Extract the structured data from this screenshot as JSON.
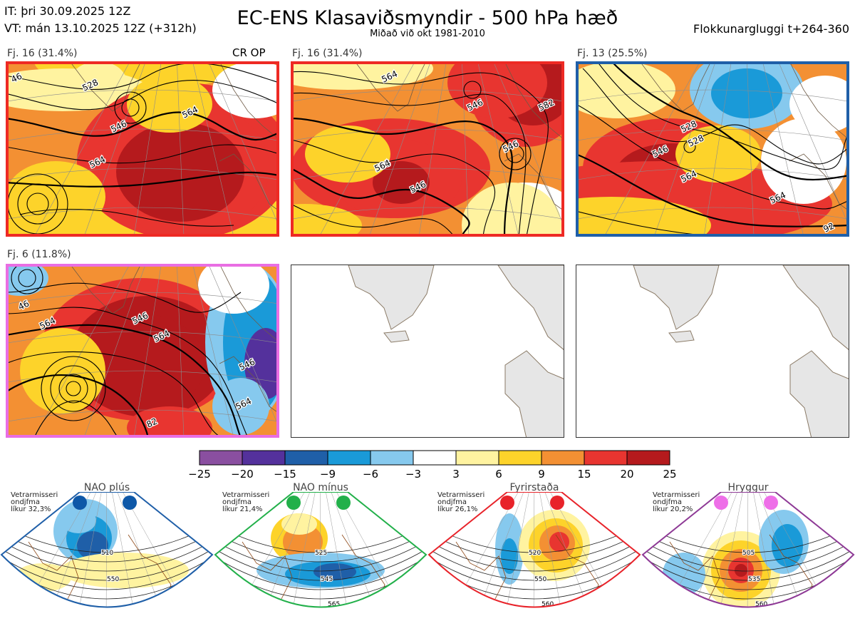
{
  "header": {
    "it_line": "IT: þri 30.09.2025 12Z",
    "vt_line": "VT: mán 13.10.2025 12Z  (+312h)",
    "title": "EC-ENS Klasaviðsmyndir - 500 hPa hæð",
    "subtitle": "Miðað við okt 1981-2010",
    "window": "Flokkunargluggi t+264-360"
  },
  "clusters": [
    {
      "label": "Fj. 16 (31.4%)",
      "tag": "CR OP",
      "border": "#ee2a24",
      "contours": [
        "46",
        "528",
        "546",
        "564",
        "564"
      ]
    },
    {
      "label": "Fj. 16 (31.4%)",
      "tag": "",
      "border": "#ee2a24",
      "contours": [
        "528",
        "546",
        "546",
        "546",
        "564",
        "582",
        "564"
      ]
    },
    {
      "label": "Fj. 13 (25.5%)",
      "tag": "",
      "border": "#1f5fa8",
      "contours": [
        "528",
        "528",
        "546",
        "564",
        "564",
        "92"
      ]
    },
    {
      "label": "Fj. 6 (11.8%)",
      "tag": "",
      "border": "#e96ee3",
      "contours": [
        "46",
        "564",
        "546",
        "564",
        "546",
        "564",
        "82"
      ]
    }
  ],
  "colorbar": {
    "ticks": [
      "−25",
      "−20",
      "−15",
      "−9",
      "−6",
      "−3",
      "3",
      "6",
      "9",
      "15",
      "20",
      "25"
    ],
    "colors": [
      "#8a4fa0",
      "#54319c",
      "#1f5fa8",
      "#1a9ad8",
      "#86c9ee",
      "#ffffff",
      "#fff3a0",
      "#fdd32a",
      "#f39033",
      "#e83530",
      "#b51a1d"
    ]
  },
  "regimes": [
    {
      "name": "NAO plús",
      "info": [
        "Vetrarmisseri",
        "ondjfma",
        "líkur 32,3%"
      ],
      "dot_color": "#0e58a8",
      "edge": "#1f5fa8",
      "contours": [
        "510",
        "550"
      ]
    },
    {
      "name": "NAO mínus",
      "info": [
        "Vetrarmisseri",
        "ondjfma",
        "líkur 21,4%"
      ],
      "dot_color": "#22b04a",
      "edge": "#22b04a",
      "contours": [
        "525",
        "545",
        "565"
      ]
    },
    {
      "name": "Fyrirstaða",
      "info": [
        "Vetrarmisseri",
        "ondjfma",
        "líkur 26,1%"
      ],
      "dot_color": "#e8232a",
      "edge": "#e8232a",
      "contours": [
        "520",
        "550",
        "560"
      ]
    },
    {
      "name": "Hryggur",
      "info": [
        "Vetrarmisseri",
        "ondjfma",
        "líkur 20,2%"
      ],
      "dot_color": "#ee6ee8",
      "edge": "#8e3a96",
      "contours": [
        "505",
        "535",
        "560"
      ]
    }
  ]
}
